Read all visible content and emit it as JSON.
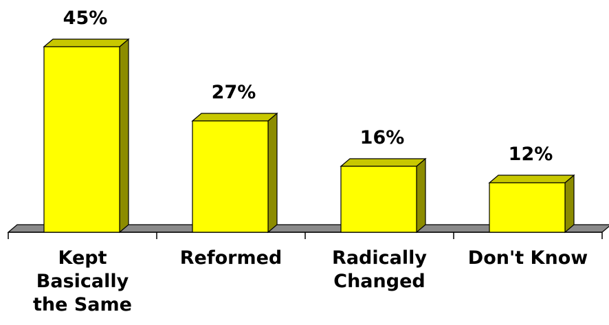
{
  "chart_data": {
    "type": "bar",
    "style": "3d",
    "categories": [
      [
        "Kept",
        "Basically",
        "the Same"
      ],
      [
        "Reformed"
      ],
      [
        "Radically",
        "Changed"
      ],
      [
        "Don't Know"
      ]
    ],
    "values": [
      45,
      27,
      16,
      12
    ],
    "value_labels": [
      "45%",
      "27%",
      "16%",
      "12%"
    ],
    "title": "",
    "xlabel": "",
    "ylabel": "",
    "ylim": [
      0,
      45
    ],
    "grid": false,
    "legend": "none",
    "colors": {
      "bar_front": "#ffff00",
      "bar_side": "#8c8c00",
      "bar_top": "#c8c800",
      "floor": "#8a8a8a",
      "outline": "#000000"
    }
  }
}
